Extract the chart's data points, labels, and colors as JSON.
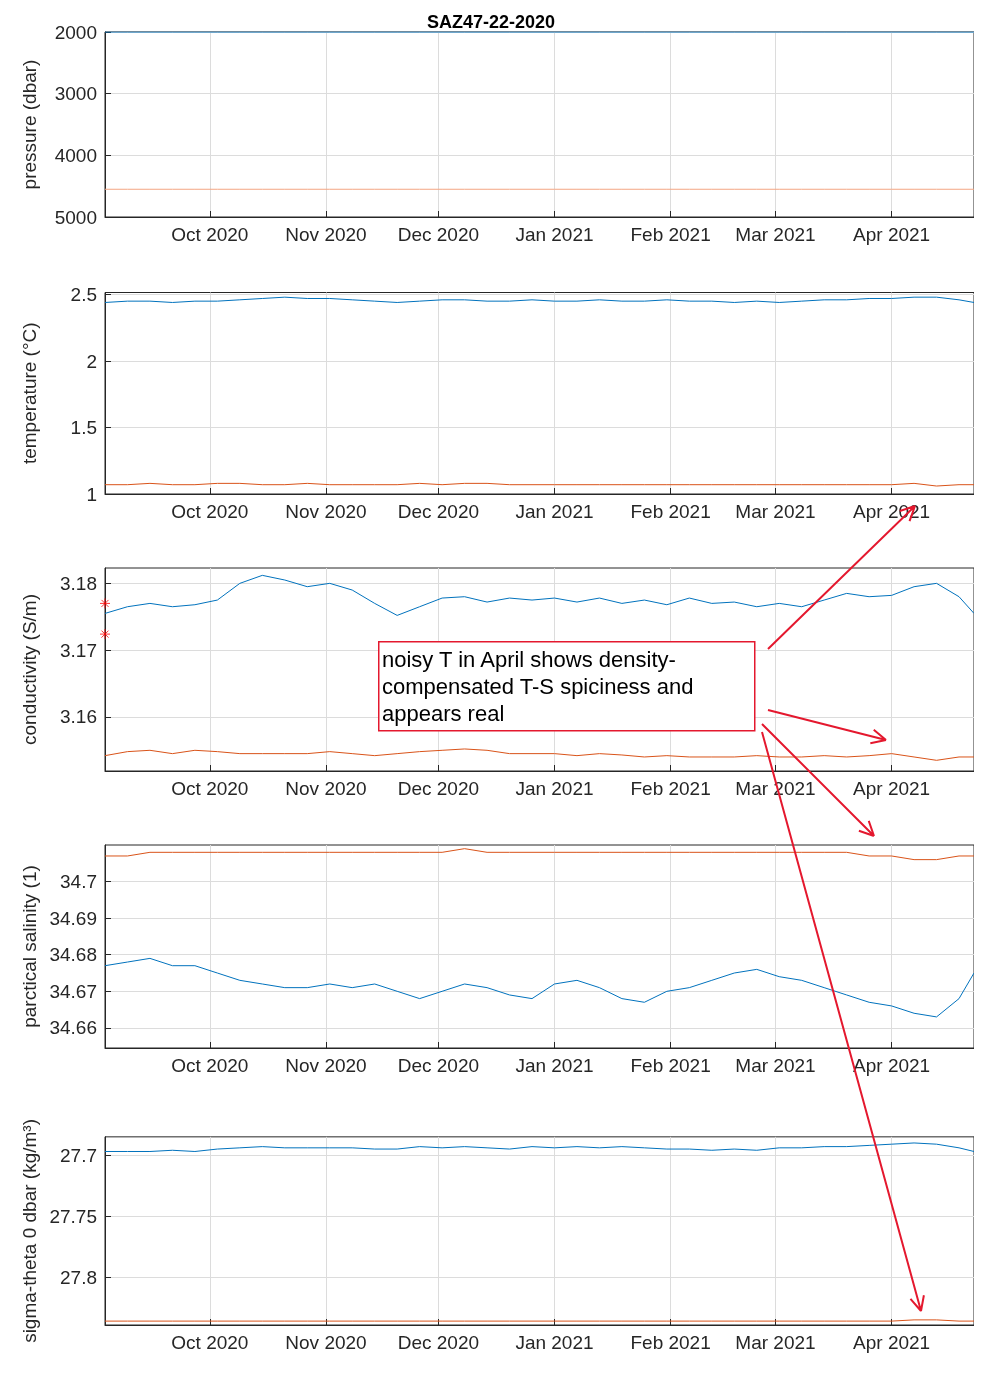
{
  "chart_data": [
    {
      "type": "line",
      "title": "SAZ47-22-2020",
      "ylabel": "pressure (dbar)",
      "xlim": [
        "2020-09-03",
        "2021-04-23"
      ],
      "xticks": [
        {
          "value": "2020-10-01",
          "label": "Oct 2020"
        },
        {
          "value": "2020-11-01",
          "label": "Nov 2020"
        },
        {
          "value": "2020-12-01",
          "label": "Dec 2020"
        },
        {
          "value": "2021-01-01",
          "label": "Jan 2021"
        },
        {
          "value": "2021-02-01",
          "label": "Feb 2021"
        },
        {
          "value": "2021-03-01",
          "label": "Mar 2021"
        },
        {
          "value": "2021-04-01",
          "label": "Apr 2021"
        }
      ],
      "ylim": [
        5000,
        2000
      ],
      "yticks": [
        2000,
        3000,
        4000,
        5000
      ],
      "grid": true,
      "x": [
        "2020-09-03",
        "2020-09-09",
        "2020-09-15",
        "2020-09-21",
        "2020-09-27",
        "2020-10-03",
        "2020-10-09",
        "2020-10-15",
        "2020-10-21",
        "2020-10-27",
        "2020-11-02",
        "2020-11-08",
        "2020-11-14",
        "2020-11-20",
        "2020-11-26",
        "2020-12-02",
        "2020-12-08",
        "2020-12-14",
        "2020-12-20",
        "2020-12-26",
        "2021-01-01",
        "2021-01-07",
        "2021-01-13",
        "2021-01-19",
        "2021-01-25",
        "2021-01-31",
        "2021-02-06",
        "2021-02-12",
        "2021-02-18",
        "2021-02-24",
        "2021-03-02",
        "2021-03-08",
        "2021-03-14",
        "2021-03-20",
        "2021-03-26",
        "2021-04-01",
        "2021-04-07",
        "2021-04-13",
        "2021-04-19",
        "2021-04-23"
      ],
      "series": [
        {
          "color": "#0072bd",
          "values": [
            2000,
            2000,
            2000,
            2000,
            2000,
            2000,
            2000,
            2000,
            2000,
            2000,
            2000,
            2000,
            2000,
            2000,
            2000,
            2000,
            2000,
            2000,
            2000,
            2000,
            2000,
            2000,
            2000,
            2000,
            2000,
            2000,
            2000,
            2000,
            2000,
            2000,
            2000,
            2000,
            2000,
            2000,
            2000,
            2000,
            2000,
            2000,
            2000,
            2000
          ]
        },
        {
          "color": "#f4a582",
          "values": [
            4550,
            4550,
            4550,
            4550,
            4550,
            4550,
            4550,
            4550,
            4550,
            4550,
            4550,
            4550,
            4550,
            4550,
            4550,
            4550,
            4550,
            4550,
            4550,
            4550,
            4550,
            4550,
            4550,
            4550,
            4550,
            4550,
            4550,
            4550,
            4550,
            4550,
            4550,
            4550,
            4550,
            4550,
            4550,
            4550,
            4550,
            4550,
            4550,
            4550
          ]
        }
      ]
    },
    {
      "type": "line",
      "ylabel": "temperature (°C)",
      "xlim": [
        "2020-09-03",
        "2021-04-23"
      ],
      "xticks": [
        {
          "value": "2020-10-01",
          "label": "Oct 2020"
        },
        {
          "value": "2020-11-01",
          "label": "Nov 2020"
        },
        {
          "value": "2020-12-01",
          "label": "Dec 2020"
        },
        {
          "value": "2021-01-01",
          "label": "Jan 2021"
        },
        {
          "value": "2021-02-01",
          "label": "Feb 2021"
        },
        {
          "value": "2021-03-01",
          "label": "Mar 2021"
        },
        {
          "value": "2021-04-01",
          "label": "Apr 2021"
        }
      ],
      "ylim": [
        1,
        2.515
      ],
      "yticks": [
        1,
        1.5,
        2,
        2.5
      ],
      "grid": true,
      "x": [
        "2020-09-03",
        "2020-09-09",
        "2020-09-15",
        "2020-09-21",
        "2020-09-27",
        "2020-10-03",
        "2020-10-09",
        "2020-10-15",
        "2020-10-21",
        "2020-10-27",
        "2020-11-02",
        "2020-11-08",
        "2020-11-14",
        "2020-11-20",
        "2020-11-26",
        "2020-12-02",
        "2020-12-08",
        "2020-12-14",
        "2020-12-20",
        "2020-12-26",
        "2021-01-01",
        "2021-01-07",
        "2021-01-13",
        "2021-01-19",
        "2021-01-25",
        "2021-01-31",
        "2021-02-06",
        "2021-02-12",
        "2021-02-18",
        "2021-02-24",
        "2021-03-02",
        "2021-03-08",
        "2021-03-14",
        "2021-03-20",
        "2021-03-26",
        "2021-04-01",
        "2021-04-07",
        "2021-04-13",
        "2021-04-19",
        "2021-04-23"
      ],
      "series": [
        {
          "color": "#0072bd",
          "values": [
            2.44,
            2.45,
            2.45,
            2.44,
            2.45,
            2.45,
            2.46,
            2.47,
            2.48,
            2.47,
            2.47,
            2.46,
            2.45,
            2.44,
            2.45,
            2.46,
            2.46,
            2.45,
            2.45,
            2.46,
            2.45,
            2.45,
            2.46,
            2.45,
            2.45,
            2.46,
            2.45,
            2.45,
            2.44,
            2.45,
            2.44,
            2.45,
            2.46,
            2.46,
            2.47,
            2.47,
            2.48,
            2.48,
            2.46,
            2.44
          ]
        },
        {
          "color": "#d95319",
          "values": [
            1.07,
            1.07,
            1.08,
            1.07,
            1.07,
            1.08,
            1.08,
            1.07,
            1.07,
            1.08,
            1.07,
            1.07,
            1.07,
            1.07,
            1.08,
            1.07,
            1.08,
            1.08,
            1.07,
            1.07,
            1.07,
            1.07,
            1.07,
            1.07,
            1.07,
            1.07,
            1.07,
            1.07,
            1.07,
            1.07,
            1.07,
            1.07,
            1.07,
            1.07,
            1.07,
            1.07,
            1.08,
            1.06,
            1.07,
            1.07
          ]
        }
      ]
    },
    {
      "type": "line",
      "ylabel": "conductivity (S/m)",
      "xlim": [
        "2020-09-03",
        "2021-04-23"
      ],
      "xticks": [
        {
          "value": "2020-10-01",
          "label": "Oct 2020"
        },
        {
          "value": "2020-11-01",
          "label": "Nov 2020"
        },
        {
          "value": "2020-12-01",
          "label": "Dec 2020"
        },
        {
          "value": "2021-01-01",
          "label": "Jan 2021"
        },
        {
          "value": "2021-02-01",
          "label": "Feb 2021"
        },
        {
          "value": "2021-03-01",
          "label": "Mar 2021"
        },
        {
          "value": "2021-04-01",
          "label": "Apr 2021"
        }
      ],
      "ylim": [
        3.1519,
        3.1823
      ],
      "yticks": [
        3.16,
        3.17,
        3.18
      ],
      "grid": true,
      "annotations": [
        "noisy T in April shows density-\ncompensated T-S spiciness and\nappears real"
      ],
      "x": [
        "2020-09-03",
        "2020-09-09",
        "2020-09-15",
        "2020-09-21",
        "2020-09-27",
        "2020-10-03",
        "2020-10-09",
        "2020-10-15",
        "2020-10-21",
        "2020-10-27",
        "2020-11-02",
        "2020-11-08",
        "2020-11-14",
        "2020-11-20",
        "2020-11-26",
        "2020-12-02",
        "2020-12-08",
        "2020-12-14",
        "2020-12-20",
        "2020-12-26",
        "2021-01-01",
        "2021-01-07",
        "2021-01-13",
        "2021-01-19",
        "2021-01-25",
        "2021-01-31",
        "2021-02-06",
        "2021-02-12",
        "2021-02-18",
        "2021-02-24",
        "2021-03-02",
        "2021-03-08",
        "2021-03-14",
        "2021-03-20",
        "2021-03-26",
        "2021-04-01",
        "2021-04-07",
        "2021-04-13",
        "2021-04-19",
        "2021-04-23"
      ],
      "series": [
        {
          "color": "#0072bd",
          "values": [
            3.1755,
            3.1765,
            3.177,
            3.1765,
            3.1768,
            3.1775,
            3.18,
            3.1812,
            3.1805,
            3.1795,
            3.18,
            3.179,
            3.177,
            3.1752,
            3.1765,
            3.1778,
            3.178,
            3.1772,
            3.1778,
            3.1775,
            3.1778,
            3.1772,
            3.1778,
            3.177,
            3.1775,
            3.1768,
            3.1778,
            3.177,
            3.1772,
            3.1765,
            3.177,
            3.1765,
            3.1775,
            3.1785,
            3.178,
            3.1782,
            3.1795,
            3.18,
            3.178,
            3.1755
          ]
        },
        {
          "color": "#d95319",
          "values": [
            3.1542,
            3.1548,
            3.155,
            3.1545,
            3.155,
            3.1548,
            3.1545,
            3.1545,
            3.1545,
            3.1545,
            3.1548,
            3.1545,
            3.1542,
            3.1545,
            3.1548,
            3.155,
            3.1552,
            3.155,
            3.1545,
            3.1545,
            3.1545,
            3.1542,
            3.1545,
            3.1543,
            3.154,
            3.1542,
            3.154,
            3.154,
            3.154,
            3.1542,
            3.154,
            3.154,
            3.1542,
            3.154,
            3.1542,
            3.1545,
            3.154,
            3.1535,
            3.154,
            3.154
          ]
        },
        {
          "type": "scatter",
          "marker": "cross",
          "color": "#ff0000",
          "x": [
            "2020-09-03",
            "2020-09-03"
          ],
          "values": [
            3.177,
            3.1724
          ]
        }
      ]
    },
    {
      "type": "line",
      "ylabel": "parctical salinity (1)",
      "xlim": [
        "2020-09-03",
        "2021-04-23"
      ],
      "xticks": [
        {
          "value": "2020-10-01",
          "label": "Oct 2020"
        },
        {
          "value": "2020-11-01",
          "label": "Nov 2020"
        },
        {
          "value": "2020-12-01",
          "label": "Dec 2020"
        },
        {
          "value": "2021-01-01",
          "label": "Jan 2021"
        },
        {
          "value": "2021-02-01",
          "label": "Feb 2021"
        },
        {
          "value": "2021-03-01",
          "label": "Mar 2021"
        },
        {
          "value": "2021-04-01",
          "label": "Apr 2021"
        }
      ],
      "ylim": [
        34.6545,
        34.71
      ],
      "yticks": [
        34.66,
        34.67,
        34.68,
        34.69,
        34.7
      ],
      "grid": true,
      "x": [
        "2020-09-03",
        "2020-09-09",
        "2020-09-15",
        "2020-09-21",
        "2020-09-27",
        "2020-10-03",
        "2020-10-09",
        "2020-10-15",
        "2020-10-21",
        "2020-10-27",
        "2020-11-02",
        "2020-11-08",
        "2020-11-14",
        "2020-11-20",
        "2020-11-26",
        "2020-12-02",
        "2020-12-08",
        "2020-12-14",
        "2020-12-20",
        "2020-12-26",
        "2021-01-01",
        "2021-01-07",
        "2021-01-13",
        "2021-01-19",
        "2021-01-25",
        "2021-01-31",
        "2021-02-06",
        "2021-02-12",
        "2021-02-18",
        "2021-02-24",
        "2021-03-02",
        "2021-03-08",
        "2021-03-14",
        "2021-03-20",
        "2021-03-26",
        "2021-04-01",
        "2021-04-07",
        "2021-04-13",
        "2021-04-19",
        "2021-04-23"
      ],
      "series": [
        {
          "color": "#0072bd",
          "values": [
            34.677,
            34.678,
            34.679,
            34.677,
            34.677,
            34.675,
            34.673,
            34.672,
            34.671,
            34.671,
            34.672,
            34.671,
            34.672,
            34.67,
            34.668,
            34.67,
            34.672,
            34.671,
            34.669,
            34.668,
            34.672,
            34.673,
            34.671,
            34.668,
            34.667,
            34.67,
            34.671,
            34.673,
            34.675,
            34.676,
            34.674,
            34.673,
            34.671,
            34.669,
            34.667,
            34.666,
            34.664,
            34.663,
            34.668,
            34.675
          ]
        },
        {
          "color": "#d95319",
          "values": [
            34.707,
            34.707,
            34.708,
            34.708,
            34.708,
            34.708,
            34.708,
            34.708,
            34.708,
            34.708,
            34.708,
            34.708,
            34.708,
            34.708,
            34.708,
            34.708,
            34.709,
            34.708,
            34.708,
            34.708,
            34.708,
            34.708,
            34.708,
            34.708,
            34.708,
            34.708,
            34.708,
            34.708,
            34.708,
            34.708,
            34.708,
            34.708,
            34.708,
            34.708,
            34.707,
            34.707,
            34.706,
            34.706,
            34.707,
            34.707
          ]
        }
      ]
    },
    {
      "type": "line",
      "ylabel": "sigma-theta 0 dbar (kg/m³)",
      "xlim": [
        "2020-09-03",
        "2021-04-23"
      ],
      "xticks": [
        {
          "value": "2020-10-01",
          "label": "Oct 2020"
        },
        {
          "value": "2020-11-01",
          "label": "Nov 2020"
        },
        {
          "value": "2020-12-01",
          "label": "Dec 2020"
        },
        {
          "value": "2021-01-01",
          "label": "Jan 2021"
        },
        {
          "value": "2021-02-01",
          "label": "Feb 2021"
        },
        {
          "value": "2021-03-01",
          "label": "Mar 2021"
        },
        {
          "value": "2021-04-01",
          "label": "Apr 2021"
        }
      ],
      "ylim": [
        27.8392,
        27.685
      ],
      "yticks": [
        27.7,
        27.75,
        27.8
      ],
      "grid": true,
      "x": [
        "2020-09-03",
        "2020-09-09",
        "2020-09-15",
        "2020-09-21",
        "2020-09-27",
        "2020-10-03",
        "2020-10-09",
        "2020-10-15",
        "2020-10-21",
        "2020-10-27",
        "2020-11-02",
        "2020-11-08",
        "2020-11-14",
        "2020-11-20",
        "2020-11-26",
        "2020-12-02",
        "2020-12-08",
        "2020-12-14",
        "2020-12-20",
        "2020-12-26",
        "2021-01-01",
        "2021-01-07",
        "2021-01-13",
        "2021-01-19",
        "2021-01-25",
        "2021-01-31",
        "2021-02-06",
        "2021-02-12",
        "2021-02-18",
        "2021-02-24",
        "2021-03-02",
        "2021-03-08",
        "2021-03-14",
        "2021-03-20",
        "2021-03-26",
        "2021-04-01",
        "2021-04-07",
        "2021-04-13",
        "2021-04-19",
        "2021-04-23"
      ],
      "series": [
        {
          "color": "#0072bd",
          "values": [
            27.697,
            27.697,
            27.697,
            27.696,
            27.697,
            27.695,
            27.694,
            27.693,
            27.694,
            27.694,
            27.694,
            27.694,
            27.695,
            27.695,
            27.693,
            27.694,
            27.693,
            27.694,
            27.695,
            27.693,
            27.694,
            27.693,
            27.694,
            27.693,
            27.694,
            27.695,
            27.695,
            27.696,
            27.695,
            27.696,
            27.694,
            27.694,
            27.693,
            27.693,
            27.692,
            27.691,
            27.69,
            27.691,
            27.694,
            27.697
          ]
        },
        {
          "color": "#d95319",
          "values": [
            27.836,
            27.836,
            27.836,
            27.836,
            27.836,
            27.836,
            27.836,
            27.836,
            27.836,
            27.836,
            27.836,
            27.836,
            27.836,
            27.836,
            27.836,
            27.836,
            27.836,
            27.836,
            27.836,
            27.836,
            27.836,
            27.836,
            27.836,
            27.836,
            27.836,
            27.836,
            27.836,
            27.836,
            27.836,
            27.836,
            27.836,
            27.836,
            27.836,
            27.836,
            27.836,
            27.836,
            27.835,
            27.835,
            27.836,
            27.836
          ]
        }
      ]
    }
  ]
}
